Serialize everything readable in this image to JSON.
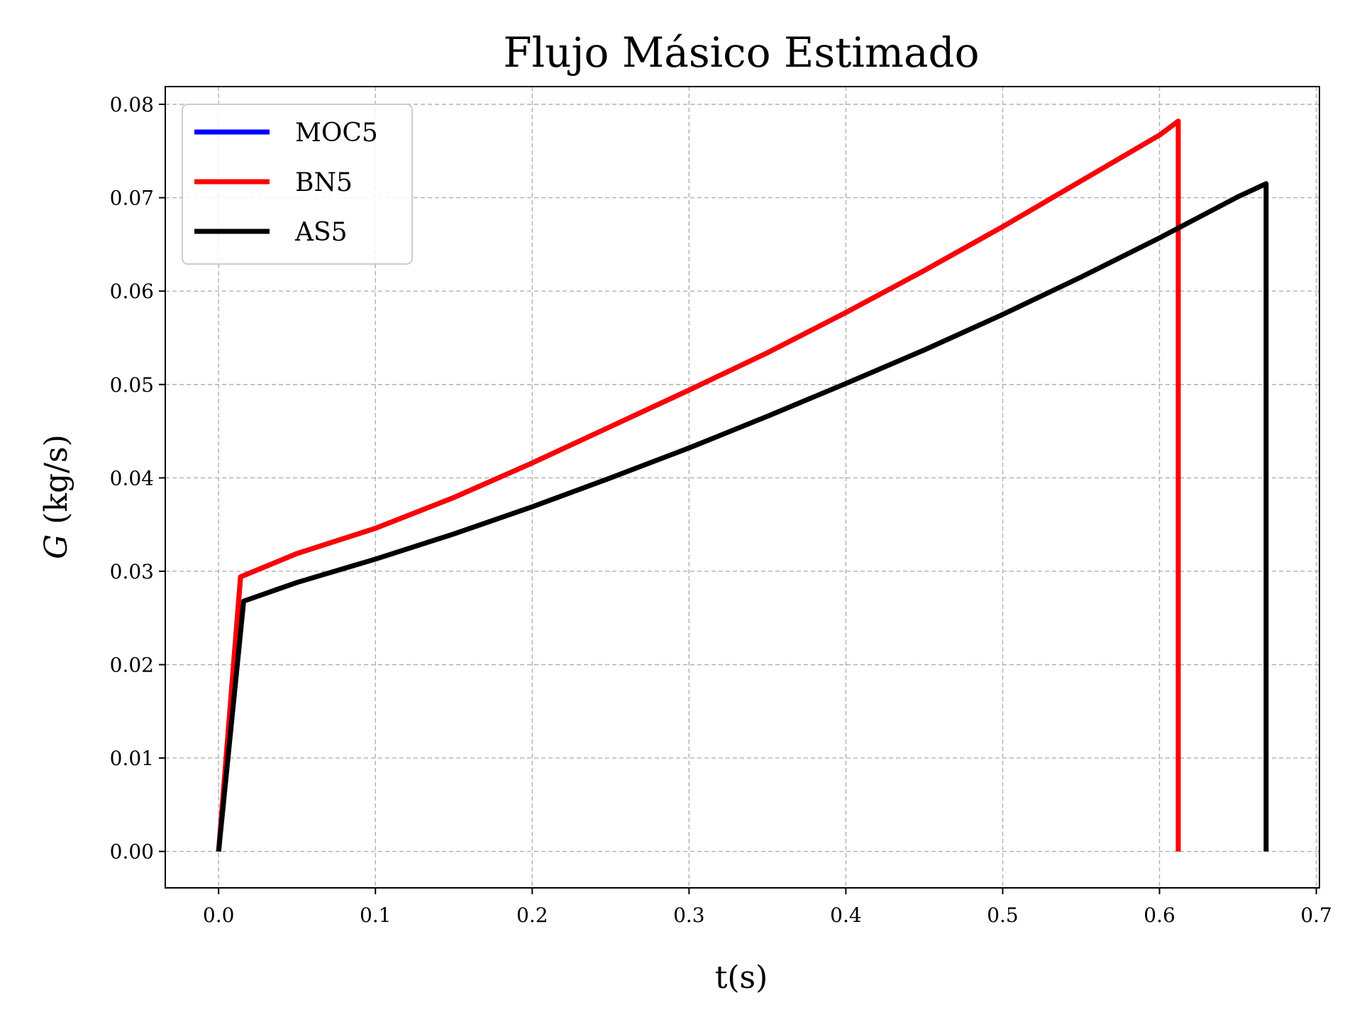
{
  "chart_data": {
    "type": "line",
    "title": "Flujo Másico Estimado",
    "xlabel": "t(s)",
    "ylabel_symbol": "G",
    "ylabel_unit": "(kg/s)",
    "xlim": [
      -0.034,
      0.702
    ],
    "ylim": [
      -0.0039,
      0.0819
    ],
    "xticks": [
      0.0,
      0.1,
      0.2,
      0.3,
      0.4,
      0.5,
      0.6,
      0.7
    ],
    "xtick_labels": [
      "0.0",
      "0.1",
      "0.2",
      "0.3",
      "0.4",
      "0.5",
      "0.6",
      "0.7"
    ],
    "yticks": [
      0.0,
      0.01,
      0.02,
      0.03,
      0.04,
      0.05,
      0.06,
      0.07,
      0.08
    ],
    "ytick_labels": [
      "0.00",
      "0.01",
      "0.02",
      "0.03",
      "0.04",
      "0.05",
      "0.06",
      "0.07",
      "0.08"
    ],
    "grid": true,
    "legend_position": "top-left",
    "series": [
      {
        "name": "MOC5",
        "color": "#0000ff",
        "x": [
          0.0,
          0.014,
          0.05,
          0.1,
          0.15,
          0.2,
          0.25,
          0.3,
          0.35,
          0.4,
          0.45,
          0.5,
          0.55,
          0.6,
          0.612,
          0.612
        ],
        "y": [
          0.0,
          0.0294,
          0.0319,
          0.0346,
          0.0379,
          0.0416,
          0.0455,
          0.0494,
          0.0534,
          0.0577,
          0.0622,
          0.0669,
          0.0718,
          0.0767,
          0.0782,
          0.0
        ]
      },
      {
        "name": "BN5",
        "color": "#ff0000",
        "x": [
          0.0,
          0.014,
          0.05,
          0.1,
          0.15,
          0.2,
          0.25,
          0.3,
          0.35,
          0.4,
          0.45,
          0.5,
          0.55,
          0.6,
          0.612,
          0.612
        ],
        "y": [
          0.0,
          0.0294,
          0.0319,
          0.0346,
          0.0379,
          0.0416,
          0.0455,
          0.0494,
          0.0534,
          0.0577,
          0.0622,
          0.0669,
          0.0718,
          0.0767,
          0.0782,
          0.0
        ]
      },
      {
        "name": "AS5",
        "color": "#000000",
        "x": [
          0.0,
          0.016,
          0.05,
          0.1,
          0.15,
          0.2,
          0.25,
          0.3,
          0.35,
          0.4,
          0.45,
          0.5,
          0.55,
          0.6,
          0.65,
          0.668,
          0.668
        ],
        "y": [
          0.0,
          0.0268,
          0.0288,
          0.0313,
          0.034,
          0.0369,
          0.04,
          0.0432,
          0.0466,
          0.0501,
          0.0537,
          0.0575,
          0.0615,
          0.0657,
          0.0701,
          0.0715,
          0.0
        ]
      }
    ]
  }
}
